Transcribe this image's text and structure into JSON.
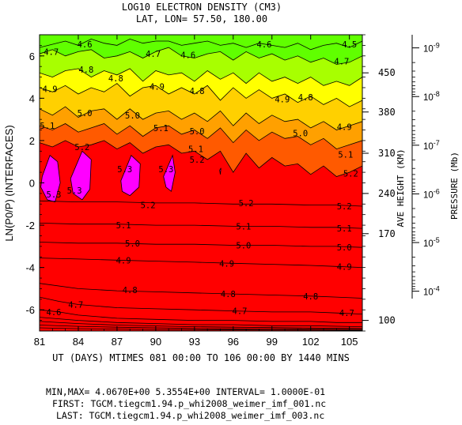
{
  "chart_data": {
    "type": "contour",
    "title_line1": "LOG10 ELECTRON DENSITY (CM3)",
    "title_line2": "LAT, LON=  57.50,    180.00",
    "xlabel": "UT (DAYS) MTIMES 081 00:00 TO 106 00:00 BY 1440 MINS",
    "ylabel": "LN(P0/P) (INTERFACES)",
    "right_label_height": "AVE HEIGHT (KM)",
    "right_label_pressure": "PRESSURE (Mb)",
    "xlim": [
      81,
      106
    ],
    "ylim": [
      -7,
      7
    ],
    "x_ticks": [
      81,
      84,
      87,
      90,
      93,
      96,
      99,
      102,
      105
    ],
    "x_tick_labels": [
      "81",
      "84",
      "87",
      "90",
      "93",
      "96",
      "99",
      "102",
      "105"
    ],
    "y_ticks": [
      6,
      4,
      2,
      0,
      -2,
      -4,
      -6
    ],
    "y_tick_labels": [
      "6",
      "4",
      "2",
      "0",
      "-2",
      "-4",
      "-6"
    ],
    "height_ticks": [
      {
        "label": "450",
        "lnp": 5.2
      },
      {
        "label": "380",
        "lnp": 3.35
      },
      {
        "label": "310",
        "lnp": 1.4
      },
      {
        "label": "240",
        "lnp": -0.5
      },
      {
        "label": "170",
        "lnp": -2.4
      },
      {
        "label": "100",
        "lnp": -6.5
      }
    ],
    "pressure_ticks": [
      {
        "mantissa": "10",
        "exponent": "-9",
        "lnp": 6.38
      },
      {
        "mantissa": "10",
        "exponent": "-8",
        "lnp": 4.08
      },
      {
        "mantissa": "10",
        "exponent": "-7",
        "lnp": 1.78
      },
      {
        "mantissa": "10",
        "exponent": "-6",
        "lnp": -0.52
      },
      {
        "mantissa": "10",
        "exponent": "-5",
        "lnp": -2.82
      },
      {
        "mantissa": "10",
        "exponent": "-4",
        "lnp": -5.12
      }
    ],
    "levels": [
      4.1,
      4.2,
      4.3,
      4.4,
      4.5,
      4.6,
      4.7,
      4.8,
      4.9,
      5.0,
      5.1,
      5.2,
      5.3
    ],
    "level_colors": [
      "#00c8c8",
      "#00e0a0",
      "#00f070",
      "#20ff20",
      "#60ff00",
      "#a8ff00",
      "#ffff00",
      "#ffd000",
      "#ffa000",
      "#ff5a00",
      "#ff0000",
      "#e8003c",
      "#ff00ff"
    ],
    "base_color": "#00b0e0",
    "contour_nodes": [
      {
        "level": 4.6,
        "x": [
          81,
          83,
          84,
          85,
          86,
          87,
          88,
          89,
          90,
          91,
          92,
          93,
          94,
          95,
          96,
          97,
          98,
          99,
          100,
          101,
          102,
          103,
          104,
          105,
          106
        ],
        "y": [
          6.4,
          6.7,
          6.5,
          6.8,
          6.6,
          6.5,
          6.8,
          6.6,
          6.7,
          6.7,
          6.5,
          6.6,
          6.7,
          6.5,
          6.6,
          6.4,
          6.6,
          6.5,
          6.4,
          6.6,
          6.3,
          6.5,
          6.6,
          6.4,
          6.7
        ]
      },
      {
        "level": 4.7,
        "x": [
          81,
          82,
          83,
          84,
          85,
          86,
          87,
          88,
          89,
          90,
          91,
          92,
          93,
          94,
          95,
          96,
          97,
          98,
          99,
          100,
          101,
          102,
          103,
          104,
          105,
          106
        ],
        "y": [
          6.1,
          6.3,
          6.0,
          6.2,
          6.3,
          5.9,
          6.0,
          6.2,
          5.9,
          6.2,
          6.4,
          6.0,
          5.9,
          6.1,
          6.2,
          5.8,
          6.2,
          5.9,
          6.1,
          5.8,
          6.0,
          5.7,
          5.9,
          5.6,
          5.7,
          6.0
        ]
      },
      {
        "level": 4.8,
        "x": [
          81,
          82,
          83,
          84,
          85,
          86,
          87,
          88,
          89,
          90,
          91,
          92,
          93,
          94,
          95,
          96,
          97,
          98,
          99,
          100,
          101,
          102,
          103,
          104,
          105,
          106
        ],
        "y": [
          5.2,
          5.0,
          5.3,
          5.4,
          5.0,
          5.3,
          5.1,
          5.4,
          4.8,
          5.3,
          5.1,
          5.2,
          4.8,
          5.3,
          4.9,
          5.2,
          4.7,
          5.2,
          4.8,
          5.0,
          4.7,
          5.0,
          4.6,
          4.8,
          4.6,
          5.0
        ]
      },
      {
        "level": 4.9,
        "x": [
          81,
          82,
          83,
          84,
          85,
          86,
          87,
          88,
          89,
          90,
          91,
          92,
          93,
          94,
          95,
          96,
          97,
          98,
          99,
          100,
          101,
          102,
          103,
          104,
          105,
          106
        ],
        "y": [
          4.5,
          4.3,
          4.6,
          4.2,
          4.5,
          4.3,
          4.7,
          4.1,
          4.5,
          4.6,
          4.2,
          4.5,
          4.2,
          4.6,
          3.9,
          4.5,
          4.0,
          4.4,
          4.0,
          4.2,
          3.8,
          4.1,
          3.7,
          4.0,
          3.6,
          3.9
        ]
      },
      {
        "level": 5.0,
        "x": [
          81,
          82,
          83,
          84,
          85,
          86,
          87,
          88,
          89,
          90,
          91,
          92,
          93,
          94,
          95,
          96,
          97,
          98,
          99,
          100,
          101,
          102,
          103,
          104,
          105,
          106
        ],
        "y": [
          3.5,
          3.2,
          3.6,
          3.1,
          3.4,
          3.5,
          3.0,
          3.5,
          3.0,
          3.3,
          3.4,
          3.0,
          3.3,
          2.9,
          3.4,
          2.7,
          3.3,
          2.8,
          3.2,
          2.9,
          3.0,
          2.6,
          2.9,
          2.5,
          2.7,
          2.9
        ]
      },
      {
        "level": 5.1,
        "x": [
          81,
          82,
          83,
          84,
          85,
          86,
          87,
          88,
          89,
          90,
          91,
          92,
          93,
          94,
          95,
          96,
          97,
          98,
          99,
          100,
          101,
          102,
          103,
          104,
          105,
          106
        ],
        "y": [
          2.7,
          2.5,
          2.8,
          2.4,
          2.6,
          2.8,
          2.3,
          2.7,
          2.2,
          2.6,
          2.7,
          2.3,
          2.5,
          2.1,
          2.6,
          1.9,
          2.5,
          2.0,
          2.4,
          2.1,
          2.2,
          1.8,
          2.1,
          1.6,
          1.8,
          2.0
        ]
      },
      {
        "level": 5.2,
        "x": [
          81,
          82,
          83,
          84,
          85,
          86,
          87,
          88,
          89,
          90,
          91,
          92,
          93,
          94,
          95,
          96,
          97,
          98,
          99,
          100,
          101,
          102,
          103,
          104,
          105,
          106
        ],
        "y": [
          1.9,
          1.7,
          2.0,
          1.7,
          1.8,
          2.0,
          1.6,
          1.9,
          1.4,
          1.7,
          1.8,
          1.4,
          1.5,
          1.1,
          1.5,
          0.5,
          1.4,
          0.7,
          1.2,
          0.8,
          0.9,
          0.4,
          0.8,
          0.3,
          0.5,
          0.8
        ]
      }
    ],
    "contour_closed": [
      {
        "level": 5.3,
        "x": [
          81.2,
          81.8,
          82.4,
          82.6,
          82.2,
          81.6,
          81.1
        ],
        "y": [
          0.3,
          1.3,
          1.0,
          0.0,
          -0.9,
          -0.8,
          -0.2
        ]
      },
      {
        "level": 5.3,
        "x": [
          83.4,
          84.3,
          85.0,
          84.9,
          84.3,
          83.6
        ],
        "y": [
          0.2,
          1.5,
          1.1,
          -0.3,
          -0.8,
          -0.5
        ]
      },
      {
        "level": 5.3,
        "x": [
          87.3,
          88.1,
          88.8,
          88.7,
          88.0,
          87.4
        ],
        "y": [
          0.1,
          1.3,
          0.9,
          -0.2,
          -0.6,
          -0.4
        ]
      },
      {
        "level": 5.3,
        "x": [
          90.6,
          91.3,
          91.5,
          91.2,
          90.8
        ],
        "y": [
          0.3,
          1.3,
          0.5,
          -0.4,
          -0.2
        ]
      },
      {
        "level": 5.3,
        "x": [
          94.95,
          95.05,
          95.0
        ],
        "y": [
          0.6,
          0.7,
          0.4
        ]
      }
    ],
    "contour_lower": [
      {
        "level": 5.2,
        "x": [
          81,
          84,
          87,
          90,
          93,
          96,
          99,
          102,
          104,
          106
        ],
        "y": [
          -0.85,
          -0.9,
          -0.9,
          -0.95,
          -0.95,
          -1.0,
          -1.0,
          -1.05,
          -1.05,
          -1.1
        ]
      },
      {
        "level": 5.1,
        "x": [
          81,
          84,
          87,
          90,
          93,
          96,
          99,
          102,
          104,
          106
        ],
        "y": [
          -1.9,
          -1.95,
          -1.95,
          -2.0,
          -2.0,
          -2.05,
          -2.05,
          -2.1,
          -2.1,
          -2.15
        ]
      },
      {
        "level": 5.0,
        "x": [
          81,
          84,
          87,
          90,
          93,
          96,
          99,
          102,
          104,
          106
        ],
        "y": [
          -2.8,
          -2.85,
          -2.85,
          -2.9,
          -2.9,
          -2.95,
          -2.95,
          -3.0,
          -3.0,
          -3.05
        ]
      },
      {
        "level": 4.9,
        "x": [
          81,
          84,
          87,
          90,
          93,
          96,
          99,
          102,
          104,
          106
        ],
        "y": [
          -3.55,
          -3.6,
          -3.65,
          -3.7,
          -3.75,
          -3.8,
          -3.85,
          -3.9,
          -3.95,
          -4.0
        ]
      },
      {
        "level": 4.8,
        "x": [
          81,
          84,
          87,
          90,
          93,
          96,
          99,
          102,
          104,
          106
        ],
        "y": [
          -4.75,
          -5.0,
          -5.1,
          -5.15,
          -5.2,
          -5.25,
          -5.3,
          -5.35,
          -5.4,
          -5.45
        ]
      },
      {
        "level": 4.7,
        "x": [
          81,
          82.5,
          84,
          87,
          90,
          93,
          96,
          99,
          102,
          104,
          106
        ],
        "y": [
          -5.4,
          -5.6,
          -5.75,
          -5.9,
          -5.95,
          -6.0,
          -6.05,
          -6.1,
          -6.1,
          -6.15,
          -6.2
        ]
      },
      {
        "level": 4.6,
        "x": [
          81,
          82.5,
          84,
          87,
          90,
          93,
          96,
          99,
          102,
          104,
          106
        ],
        "y": [
          -6.0,
          -6.1,
          -6.25,
          -6.4,
          -6.45,
          -6.5,
          -6.5,
          -6.55,
          -6.55,
          -6.6,
          -6.6
        ]
      },
      {
        "level": 4.5,
        "x": [
          81,
          84,
          87,
          90,
          93,
          96,
          99,
          102,
          106
        ],
        "y": [
          -6.35,
          -6.5,
          -6.6,
          -6.65,
          -6.7,
          -6.7,
          -6.75,
          -6.75,
          -6.8
        ]
      },
      {
        "level": 4.4,
        "x": [
          81,
          84,
          87,
          90,
          93,
          96,
          99,
          102,
          106
        ],
        "y": [
          -6.55,
          -6.65,
          -6.72,
          -6.76,
          -6.8,
          -6.82,
          -6.84,
          -6.86,
          -6.88
        ]
      },
      {
        "level": 4.3,
        "x": [
          81,
          84,
          87,
          90,
          93,
          96,
          99,
          102,
          106
        ],
        "y": [
          -6.72,
          -6.78,
          -6.82,
          -6.85,
          -6.88,
          -6.9,
          -6.91,
          -6.92,
          -6.93
        ]
      },
      {
        "level": 4.2,
        "x": [
          81,
          84,
          87,
          90,
          93,
          96,
          99,
          102,
          106
        ],
        "y": [
          -6.85,
          -6.89,
          -6.91,
          -6.93,
          -6.94,
          -6.95,
          -6.96,
          -6.96,
          -6.97
        ]
      }
    ],
    "contour_labels": [
      {
        "text": "4.6",
        "x": 84.5,
        "y": 6.55
      },
      {
        "text": "4.6",
        "x": 98.4,
        "y": 6.55
      },
      {
        "text": "4.5",
        "x": 105.0,
        "y": 6.55
      },
      {
        "text": "4.7",
        "x": 81.9,
        "y": 6.2
      },
      {
        "text": "4.7",
        "x": 89.8,
        "y": 6.1
      },
      {
        "text": "4.6",
        "x": 92.5,
        "y": 6.05
      },
      {
        "text": "4.8",
        "x": 84.6,
        "y": 5.35
      },
      {
        "text": "4.7",
        "x": 104.4,
        "y": 5.75
      },
      {
        "text": "4.9",
        "x": 81.8,
        "y": 4.45
      },
      {
        "text": "4.8",
        "x": 86.9,
        "y": 4.95
      },
      {
        "text": "4.9",
        "x": 90.1,
        "y": 4.55
      },
      {
        "text": "4.8",
        "x": 93.2,
        "y": 4.35
      },
      {
        "text": "4.8",
        "x": 101.6,
        "y": 4.05
      },
      {
        "text": "4.9",
        "x": 99.8,
        "y": 3.95
      },
      {
        "text": "5.1",
        "x": 81.6,
        "y": 2.7
      },
      {
        "text": "5.0",
        "x": 84.5,
        "y": 3.3
      },
      {
        "text": "5.0",
        "x": 88.2,
        "y": 3.2
      },
      {
        "text": "5.1",
        "x": 90.4,
        "y": 2.6
      },
      {
        "text": "5.0",
        "x": 93.2,
        "y": 2.45
      },
      {
        "text": "5.0",
        "x": 101.2,
        "y": 2.35
      },
      {
        "text": "4.9",
        "x": 104.6,
        "y": 2.65
      },
      {
        "text": "5.2",
        "x": 84.3,
        "y": 1.7
      },
      {
        "text": "5.1",
        "x": 93.1,
        "y": 1.6
      },
      {
        "text": "5.2",
        "x": 93.2,
        "y": 1.1
      },
      {
        "text": "5.1",
        "x": 104.7,
        "y": 1.35
      },
      {
        "text": "5.2",
        "x": 105.1,
        "y": 0.45
      },
      {
        "text": "5.3",
        "x": 82.1,
        "y": -0.55
      },
      {
        "text": "5.3",
        "x": 83.7,
        "y": -0.35
      },
      {
        "text": "5.3",
        "x": 87.6,
        "y": 0.65
      },
      {
        "text": "5.3",
        "x": 90.8,
        "y": 0.65
      },
      {
        "text": "5.2",
        "x": 89.4,
        "y": -1.05
      },
      {
        "text": "5.2",
        "x": 97.0,
        "y": -0.95
      },
      {
        "text": "5.2",
        "x": 104.6,
        "y": -1.1
      },
      {
        "text": "5.1",
        "x": 87.5,
        "y": -2.0
      },
      {
        "text": "5.1",
        "x": 96.8,
        "y": -2.05
      },
      {
        "text": "5.1",
        "x": 104.6,
        "y": -2.15
      },
      {
        "text": "5.0",
        "x": 88.2,
        "y": -2.85
      },
      {
        "text": "5.0",
        "x": 96.8,
        "y": -2.95
      },
      {
        "text": "5.0",
        "x": 104.6,
        "y": -3.05
      },
      {
        "text": "4.9",
        "x": 87.5,
        "y": -3.65
      },
      {
        "text": "4.9",
        "x": 95.5,
        "y": -3.8
      },
      {
        "text": "4.9",
        "x": 104.6,
        "y": -3.95
      },
      {
        "text": "4.8",
        "x": 88.0,
        "y": -5.05
      },
      {
        "text": "4.8",
        "x": 95.6,
        "y": -5.25
      },
      {
        "text": "4.8",
        "x": 102.0,
        "y": -5.35
      },
      {
        "text": "4.7",
        "x": 83.8,
        "y": -5.75
      },
      {
        "text": "4.7",
        "x": 96.5,
        "y": -6.05
      },
      {
        "text": "4.7",
        "x": 104.8,
        "y": -6.15
      },
      {
        "text": "4.6",
        "x": 82.1,
        "y": -6.1
      }
    ]
  },
  "footer": {
    "minmax": "MIN,MAX=  4.0670E+00  5.3554E+00 INTERVAL=  1.0000E-01",
    "first": "FIRST: TGCM.tiegcm1.94.p_whi2008_weimer_imf_001.nc",
    "last": "LAST: TGCM.tiegcm1.94.p_whi2008_weimer_imf_003.nc"
  }
}
